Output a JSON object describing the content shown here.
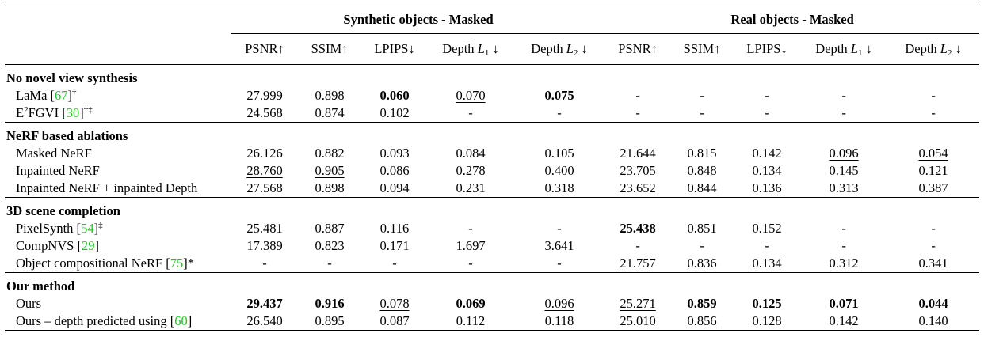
{
  "groups": {
    "synthetic": "Synthetic objects - Masked",
    "real": "Real objects - Masked"
  },
  "metrics": [
    "PSNR↑",
    "SSIM↑",
    "LPIPS↓",
    "Depth",
    "Depth"
  ],
  "depth_symbols": {
    "l1": "L",
    "l1_sub": "1",
    "l2": "L",
    "l2_sub": "2",
    "arrow": "↓"
  },
  "sections": [
    {
      "title": "No novel view synthesis",
      "rows": [
        {
          "name": "LaMa [",
          "cite": "67",
          "suffix": "]",
          "sup": "†",
          "cells": [
            [
              "27.999",
              ""
            ],
            [
              "0.898",
              ""
            ],
            [
              "0.060",
              "b"
            ],
            [
              "0.070",
              "u"
            ],
            [
              "0.075",
              "b"
            ],
            [
              "-",
              ""
            ],
            [
              "-",
              ""
            ],
            [
              "-",
              ""
            ],
            [
              "-",
              ""
            ],
            [
              "-",
              ""
            ]
          ]
        },
        {
          "name": "E",
          "name_sup": "2",
          "name2": "FGVI [",
          "cite": "30",
          "suffix": "]",
          "sup": "†‡",
          "cells": [
            [
              "24.568",
              ""
            ],
            [
              "0.874",
              ""
            ],
            [
              "0.102",
              ""
            ],
            [
              "-",
              ""
            ],
            [
              "-",
              ""
            ],
            [
              "-",
              ""
            ],
            [
              "-",
              ""
            ],
            [
              "-",
              ""
            ],
            [
              "-",
              ""
            ],
            [
              "-",
              ""
            ]
          ]
        }
      ]
    },
    {
      "title": "NeRF based ablations",
      "rows": [
        {
          "name": "Masked NeRF",
          "cells": [
            [
              "26.126",
              ""
            ],
            [
              "0.882",
              ""
            ],
            [
              "0.093",
              ""
            ],
            [
              "0.084",
              ""
            ],
            [
              "0.105",
              ""
            ],
            [
              "21.644",
              ""
            ],
            [
              "0.815",
              ""
            ],
            [
              "0.142",
              ""
            ],
            [
              "0.096",
              "u"
            ],
            [
              "0.054",
              "u"
            ]
          ]
        },
        {
          "name": "Inpainted NeRF",
          "cells": [
            [
              "28.760",
              "u"
            ],
            [
              "0.905",
              "u"
            ],
            [
              "0.086",
              ""
            ],
            [
              "0.278",
              ""
            ],
            [
              "0.400",
              ""
            ],
            [
              "23.705",
              ""
            ],
            [
              "0.848",
              ""
            ],
            [
              "0.134",
              ""
            ],
            [
              "0.145",
              ""
            ],
            [
              "0.121",
              ""
            ]
          ]
        },
        {
          "name": "Inpainted NeRF + inpainted Depth",
          "cells": [
            [
              "27.568",
              ""
            ],
            [
              "0.898",
              ""
            ],
            [
              "0.094",
              ""
            ],
            [
              "0.231",
              ""
            ],
            [
              "0.318",
              ""
            ],
            [
              "23.652",
              ""
            ],
            [
              "0.844",
              ""
            ],
            [
              "0.136",
              ""
            ],
            [
              "0.313",
              ""
            ],
            [
              "0.387",
              ""
            ]
          ]
        }
      ]
    },
    {
      "title": "3D scene completion",
      "rows": [
        {
          "name": "PixelSynth [",
          "cite": "54",
          "suffix": "]",
          "sup": "‡",
          "cells": [
            [
              "25.481",
              ""
            ],
            [
              "0.887",
              ""
            ],
            [
              "0.116",
              ""
            ],
            [
              "-",
              ""
            ],
            [
              "-",
              ""
            ],
            [
              "25.438",
              "b"
            ],
            [
              "0.851",
              ""
            ],
            [
              "0.152",
              ""
            ],
            [
              "-",
              ""
            ],
            [
              "-",
              ""
            ]
          ]
        },
        {
          "name": "CompNVS [",
          "cite": "29",
          "suffix": "]",
          "cells": [
            [
              "17.389",
              ""
            ],
            [
              "0.823",
              ""
            ],
            [
              "0.171",
              ""
            ],
            [
              "1.697",
              ""
            ],
            [
              "3.641",
              ""
            ],
            [
              "-",
              ""
            ],
            [
              "-",
              ""
            ],
            [
              "-",
              ""
            ],
            [
              "-",
              ""
            ],
            [
              "-",
              ""
            ]
          ]
        },
        {
          "name": "Object compositional NeRF [",
          "cite": "75",
          "suffix": "]*",
          "cells": [
            [
              "-",
              ""
            ],
            [
              "-",
              ""
            ],
            [
              "-",
              ""
            ],
            [
              "-",
              ""
            ],
            [
              "-",
              ""
            ],
            [
              "21.757",
              ""
            ],
            [
              "0.836",
              ""
            ],
            [
              "0.134",
              ""
            ],
            [
              "0.312",
              ""
            ],
            [
              "0.341",
              ""
            ]
          ]
        }
      ]
    },
    {
      "title": "Our method",
      "rows": [
        {
          "name": "Ours",
          "cells": [
            [
              "29.437",
              "b"
            ],
            [
              "0.916",
              "b"
            ],
            [
              "0.078",
              "u"
            ],
            [
              "0.069",
              "b"
            ],
            [
              "0.096",
              "u"
            ],
            [
              "25.271",
              "u"
            ],
            [
              "0.859",
              "b"
            ],
            [
              "0.125",
              "b"
            ],
            [
              "0.071",
              "b"
            ],
            [
              "0.044",
              "b"
            ]
          ]
        },
        {
          "name": "Ours – depth predicted using [",
          "cite": "60",
          "suffix": "]",
          "cells": [
            [
              "26.540",
              ""
            ],
            [
              "0.895",
              ""
            ],
            [
              "0.087",
              ""
            ],
            [
              "0.112",
              ""
            ],
            [
              "0.118",
              ""
            ],
            [
              "25.010",
              ""
            ],
            [
              "0.856",
              "u"
            ],
            [
              "0.128",
              "u"
            ],
            [
              "0.142",
              ""
            ],
            [
              "0.140",
              ""
            ]
          ]
        }
      ]
    }
  ]
}
